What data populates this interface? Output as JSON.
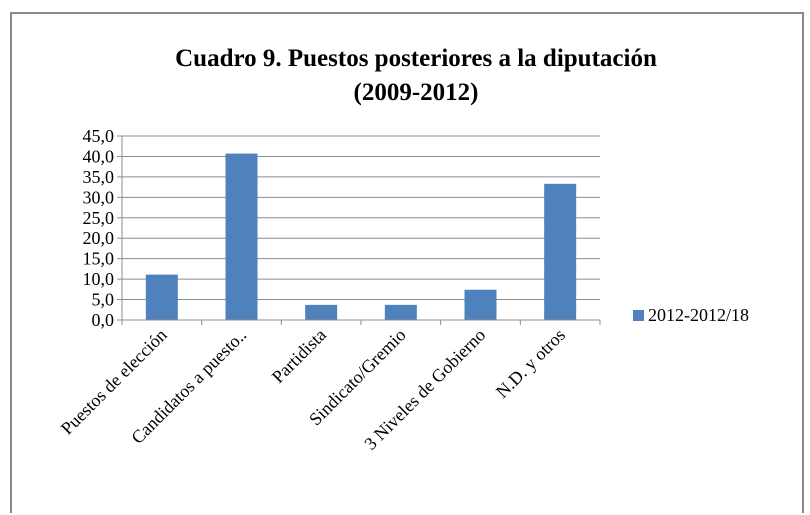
{
  "chart_data": {
    "type": "bar",
    "title": "Cuadro 9. Puestos posteriores a la diputación",
    "subtitle": "(2009-2012)",
    "categories": [
      "Puestos de elección",
      "Candidatos a puesto..",
      "Partidista",
      "Sindicato/Gremio",
      "3 Niveles de Gobierno",
      "N.D. y otros"
    ],
    "series": [
      {
        "name": "2012-2012/18",
        "values": [
          11.1,
          40.7,
          3.7,
          3.7,
          7.4,
          33.3
        ],
        "color": "#4f81bd"
      }
    ],
    "ylim": [
      0,
      45
    ],
    "yticks": [
      "0,0",
      "5,0",
      "10,0",
      "15,0",
      "20,0",
      "25,0",
      "30,0",
      "35,0",
      "40,0",
      "45,0"
    ],
    "grid": true,
    "legend_position": "right",
    "xlabel": "",
    "ylabel": ""
  }
}
